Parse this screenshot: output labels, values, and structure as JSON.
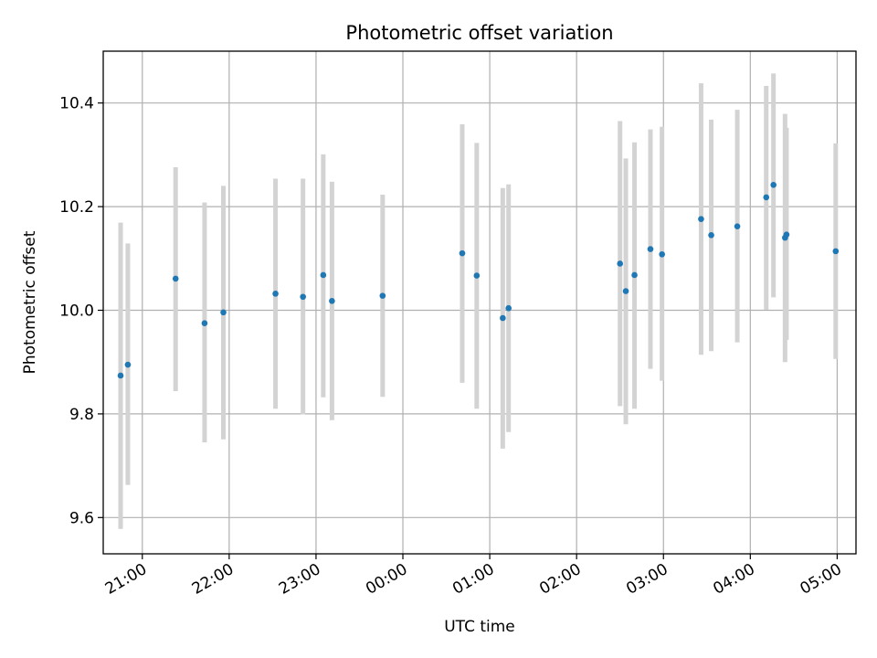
{
  "chart_data": {
    "type": "scatter",
    "title": "Photometric offset variation",
    "xlabel": "UTC time",
    "ylabel": "Photometric offset",
    "xlim": [
      "20:33",
      "05:13"
    ],
    "ylim": [
      9.53,
      10.5
    ],
    "x_ticks": [
      "21:00",
      "22:00",
      "23:00",
      "00:00",
      "01:00",
      "02:00",
      "03:00",
      "04:00",
      "05:00"
    ],
    "y_ticks": [
      9.6,
      9.8,
      10.0,
      10.2,
      10.4
    ],
    "y_tick_labels": [
      "9.6",
      "9.8",
      "10.0",
      "10.2",
      "10.4"
    ],
    "grid": true,
    "colors": {
      "point": "#1f77b4",
      "errorbar": "#d3d3d3",
      "grid": "#b0b0b0"
    },
    "points": [
      {
        "x": "20:45",
        "y": 9.874,
        "ylow": 9.578,
        "yhigh": 10.169
      },
      {
        "x": "20:50",
        "y": 9.895,
        "ylow": 9.663,
        "yhigh": 10.129
      },
      {
        "x": "21:23",
        "y": 10.061,
        "ylow": 9.844,
        "yhigh": 10.276
      },
      {
        "x": "21:43",
        "y": 9.975,
        "ylow": 9.745,
        "yhigh": 10.208
      },
      {
        "x": "21:56",
        "y": 9.996,
        "ylow": 9.751,
        "yhigh": 10.24
      },
      {
        "x": "22:32",
        "y": 10.032,
        "ylow": 9.81,
        "yhigh": 10.254
      },
      {
        "x": "22:51",
        "y": 10.026,
        "ylow": 9.799,
        "yhigh": 10.254
      },
      {
        "x": "23:05",
        "y": 10.068,
        "ylow": 9.832,
        "yhigh": 10.301
      },
      {
        "x": "23:11",
        "y": 10.018,
        "ylow": 9.788,
        "yhigh": 10.248
      },
      {
        "x": "23:46",
        "y": 10.028,
        "ylow": 9.833,
        "yhigh": 10.223
      },
      {
        "x": "00:41",
        "y": 10.11,
        "ylow": 9.86,
        "yhigh": 10.359
      },
      {
        "x": "00:51",
        "y": 10.067,
        "ylow": 9.81,
        "yhigh": 10.323
      },
      {
        "x": "01:09",
        "y": 9.985,
        "ylow": 9.733,
        "yhigh": 10.236
      },
      {
        "x": "01:13",
        "y": 10.004,
        "ylow": 9.765,
        "yhigh": 10.243
      },
      {
        "x": "02:30",
        "y": 10.09,
        "ylow": 9.815,
        "yhigh": 10.365
      },
      {
        "x": "02:34",
        "y": 10.037,
        "ylow": 9.78,
        "yhigh": 10.293
      },
      {
        "x": "02:40",
        "y": 10.068,
        "ylow": 9.81,
        "yhigh": 10.324
      },
      {
        "x": "02:51",
        "y": 10.118,
        "ylow": 9.887,
        "yhigh": 10.349
      },
      {
        "x": "02:59",
        "y": 10.108,
        "ylow": 9.864,
        "yhigh": 10.354
      },
      {
        "x": "03:26",
        "y": 10.176,
        "ylow": 9.914,
        "yhigh": 10.438
      },
      {
        "x": "03:33",
        "y": 10.145,
        "ylow": 9.921,
        "yhigh": 10.368
      },
      {
        "x": "03:51",
        "y": 10.162,
        "ylow": 9.938,
        "yhigh": 10.387
      },
      {
        "x": "04:11",
        "y": 10.218,
        "ylow": 10.001,
        "yhigh": 10.433
      },
      {
        "x": "04:16",
        "y": 10.242,
        "ylow": 10.025,
        "yhigh": 10.457
      },
      {
        "x": "04:24",
        "y": 10.14,
        "ylow": 9.9,
        "yhigh": 10.379
      },
      {
        "x": "04:25",
        "y": 10.146,
        "ylow": 9.943,
        "yhigh": 10.352
      },
      {
        "x": "04:59",
        "y": 10.114,
        "ylow": 9.906,
        "yhigh": 10.322
      }
    ]
  }
}
